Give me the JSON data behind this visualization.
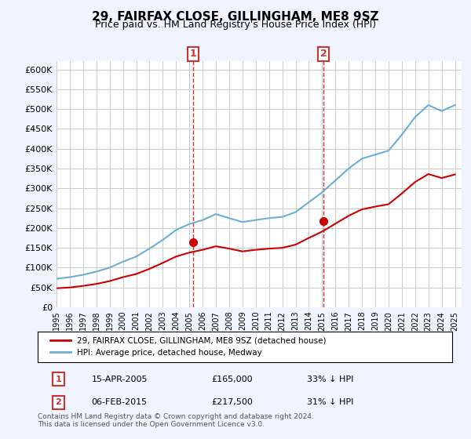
{
  "title": "29, FAIRFAX CLOSE, GILLINGHAM, ME8 9SZ",
  "subtitle": "Price paid vs. HM Land Registry's House Price Index (HPI)",
  "legend_label_red": "29, FAIRFAX CLOSE, GILLINGHAM, ME8 9SZ (detached house)",
  "legend_label_blue": "HPI: Average price, detached house, Medway",
  "footnote": "Contains HM Land Registry data © Crown copyright and database right 2024.\nThis data is licensed under the Open Government Licence v3.0.",
  "sale1_date": "15-APR-2005",
  "sale1_price": 165000,
  "sale1_label": "33% ↓ HPI",
  "sale2_date": "06-FEB-2015",
  "sale2_price": 217500,
  "sale2_label": "31% ↓ HPI",
  "sale1_year": 2005.29,
  "sale2_year": 2015.09,
  "ylim": [
    0,
    620000
  ],
  "yticks": [
    0,
    50000,
    100000,
    150000,
    200000,
    250000,
    300000,
    350000,
    400000,
    450000,
    500000,
    550000,
    600000
  ],
  "hpi_color": "#6baed6",
  "price_color": "#cc0000",
  "vline_color": "#cc3333",
  "bg_color": "#f0f4ff",
  "plot_bg": "#ffffff",
  "hpi_years": [
    1995,
    1996,
    1997,
    1998,
    1999,
    2000,
    2001,
    2002,
    2003,
    2004,
    2005,
    2006,
    2007,
    2008,
    2009,
    2010,
    2011,
    2012,
    2013,
    2014,
    2015,
    2016,
    2017,
    2018,
    2019,
    2020,
    2021,
    2022,
    2023,
    2024,
    2025
  ],
  "hpi_values": [
    72000,
    76000,
    82000,
    90000,
    100000,
    115000,
    128000,
    148000,
    170000,
    195000,
    210000,
    220000,
    235000,
    225000,
    215000,
    220000,
    225000,
    228000,
    240000,
    265000,
    290000,
    320000,
    350000,
    375000,
    385000,
    395000,
    435000,
    480000,
    510000,
    495000,
    510000
  ],
  "price_years": [
    1995,
    1996,
    1997,
    1998,
    1999,
    2000,
    2001,
    2002,
    2003,
    2004,
    2005,
    2006,
    2007,
    2008,
    2009,
    2010,
    2011,
    2012,
    2013,
    2014,
    2015,
    2016,
    2017,
    2018,
    2019,
    2020,
    2021,
    2022,
    2023,
    2024,
    2025
  ],
  "price_values": [
    48000,
    50000,
    54000,
    59000,
    66000,
    76000,
    84000,
    97000,
    112000,
    128000,
    138000,
    145000,
    154000,
    148000,
    141000,
    145000,
    148000,
    150000,
    158000,
    175000,
    191000,
    211000,
    231000,
    247000,
    254000,
    260000,
    287000,
    316000,
    336000,
    326000,
    335000
  ]
}
